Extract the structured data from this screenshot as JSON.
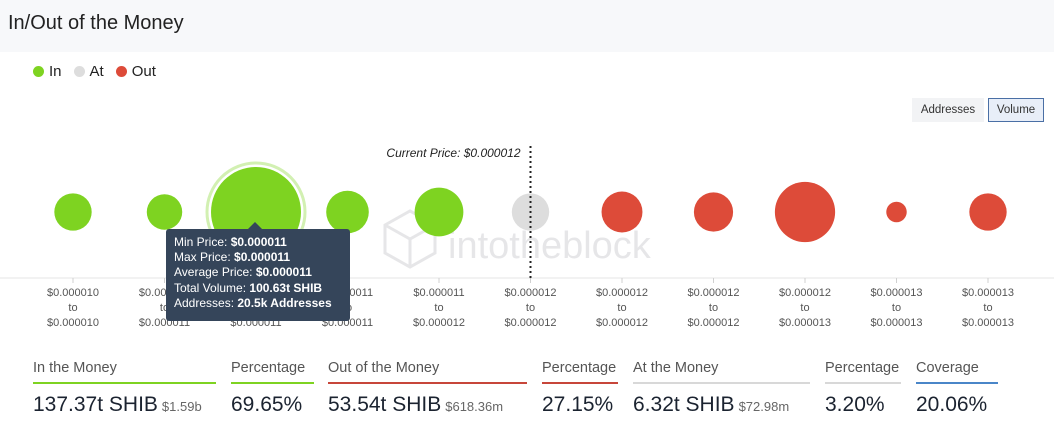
{
  "title": "In/Out of the Money",
  "legend": [
    {
      "label": "In",
      "color": "#7ed321"
    },
    {
      "label": "At",
      "color": "#dddddd"
    },
    {
      "label": "Out",
      "color": "#dd4b39"
    }
  ],
  "toggles": {
    "addresses": "Addresses",
    "volume": "Volume",
    "active": "Volume"
  },
  "watermark": "intotheblock",
  "chart_data": {
    "type": "scatter",
    "encoding": "bubble size = total volume; color = in/at/out of the money",
    "current_price_label": "Current Price: $0.000012",
    "current_price_position": "between bucket 6 and bucket 7",
    "categories": [
      {
        "from": "$0.000010",
        "to": "$0.000010",
        "status": "in",
        "relative_volume": 0.1
      },
      {
        "from": "$0.000011",
        "to": "$0.000011",
        "status": "in",
        "relative_volume": 0.09
      },
      {
        "from": "$0.000011",
        "to": "$0.000011",
        "status": "in",
        "relative_volume": 0.58,
        "highlighted": true
      },
      {
        "from": "$0.000011",
        "to": "$0.000011",
        "status": "in",
        "relative_volume": 0.13
      },
      {
        "from": "$0.000011",
        "to": "$0.000012",
        "status": "in",
        "relative_volume": 0.17
      },
      {
        "from": "$0.000012",
        "to": "$0.000012",
        "status": "at",
        "relative_volume": 0.1
      },
      {
        "from": "$0.000012",
        "to": "$0.000012",
        "status": "out",
        "relative_volume": 0.12
      },
      {
        "from": "$0.000012",
        "to": "$0.000012",
        "status": "out",
        "relative_volume": 0.11
      },
      {
        "from": "$0.000012",
        "to": "$0.000013",
        "status": "out",
        "relative_volume": 0.26
      },
      {
        "from": "$0.000013",
        "to": "$0.000013",
        "status": "out",
        "relative_volume": 0.03
      },
      {
        "from": "$0.000013",
        "to": "$0.000013",
        "status": "out",
        "relative_volume": 0.1
      }
    ],
    "range_connector": "to"
  },
  "tooltip": {
    "rows": [
      {
        "label": "Min Price:",
        "value": "$0.000011"
      },
      {
        "label": "Max Price:",
        "value": "$0.000011"
      },
      {
        "label": "Average Price:",
        "value": "$0.000011"
      },
      {
        "label": "Total Volume:",
        "value": "100.63t SHIB"
      },
      {
        "label": "Addresses:",
        "value": "20.5k Addresses"
      }
    ]
  },
  "stats": [
    {
      "label": "In the Money",
      "value": "137.37t SHIB",
      "sub": "$1.59b",
      "color": "#7ed321"
    },
    {
      "label": "Percentage",
      "value": "69.65%",
      "sub": "",
      "color": "#7ed321"
    },
    {
      "label": "Out of the Money",
      "value": "53.54t SHIB",
      "sub": "$618.36m",
      "color": "#c7463a"
    },
    {
      "label": "Percentage",
      "value": "27.15%",
      "sub": "",
      "color": "#c7463a"
    },
    {
      "label": "At the Money",
      "value": "6.32t SHIB",
      "sub": "$72.98m",
      "color": "#d8d8d8"
    },
    {
      "label": "Percentage",
      "value": "3.20%",
      "sub": "",
      "color": "#d8d8d8"
    },
    {
      "label": "Coverage",
      "value": "20.06%",
      "sub": "",
      "color": "#4a86c8"
    }
  ]
}
